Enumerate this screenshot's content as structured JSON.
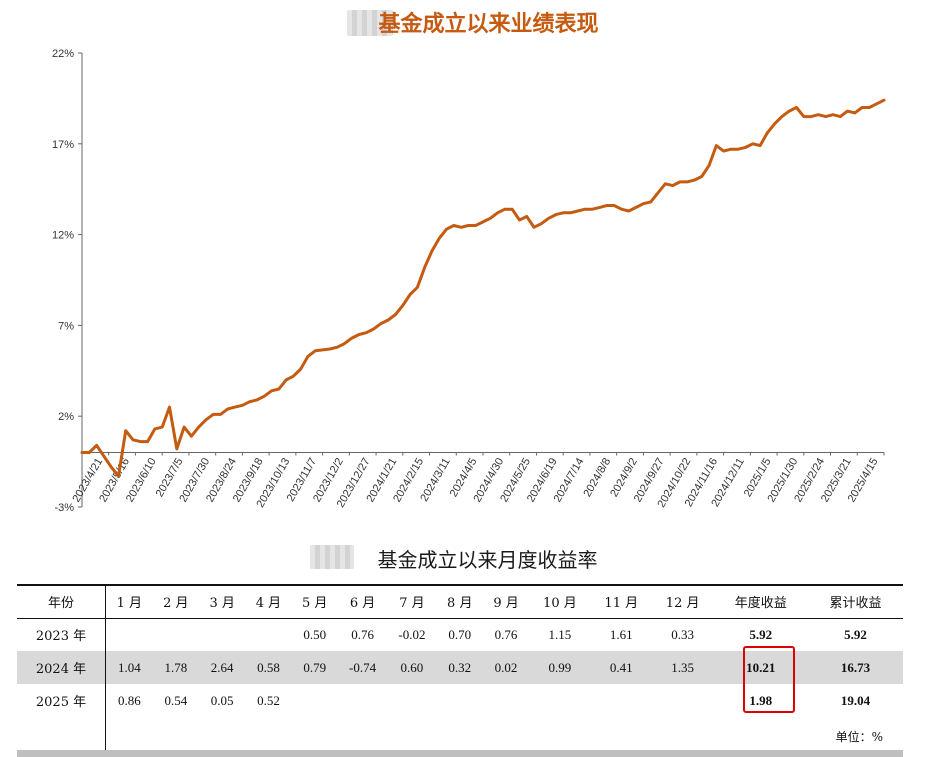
{
  "chart_title": "基金成立以来业绩表现",
  "table_title": "基金成立以来月度收益率",
  "chart_data": {
    "type": "line",
    "title": "基金成立以来业绩表现",
    "xlabel": "",
    "ylabel": "",
    "ylim": [
      -3,
      22
    ],
    "yticks": [
      "-3%",
      "2%",
      "7%",
      "12%",
      "17%",
      "22%"
    ],
    "ytick_values": [
      -3,
      2,
      7,
      12,
      17,
      22
    ],
    "xtick_labels": [
      "2023/4/21",
      "2023/5/16",
      "2023/6/10",
      "2023/7/5",
      "2023/7/30",
      "2023/8/24",
      "2023/9/18",
      "2023/10/13",
      "2023/11/7",
      "2023/12/2",
      "2023/12/27",
      "2024/1/21",
      "2024/2/15",
      "2024/3/11",
      "2024/4/5",
      "2024/4/30",
      "2024/5/25",
      "2024/6/19",
      "2024/7/14",
      "2024/8/8",
      "2024/9/2",
      "2024/9/27",
      "2024/10/22",
      "2024/11/16",
      "2024/12/11",
      "2025/1/5",
      "2025/1/30",
      "2025/2/24",
      "2025/3/21",
      "2025/4/15"
    ],
    "grid": false,
    "color": "#c55a11",
    "series": [
      {
        "values": [
          0.0,
          0.0,
          0.4,
          -0.2,
          -0.8,
          -1.3,
          1.2,
          0.7,
          0.6,
          0.6,
          1.3,
          1.4,
          2.5,
          0.2,
          1.4,
          0.9,
          1.4,
          1.8,
          2.1,
          2.1,
          2.4,
          2.5,
          2.6,
          2.8,
          2.9,
          3.1,
          3.4,
          3.5,
          4.0,
          4.2,
          4.6,
          5.3,
          5.6,
          5.65,
          5.7,
          5.8,
          6.0,
          6.3,
          6.5,
          6.6,
          6.8,
          7.1,
          7.3,
          7.6,
          8.1,
          8.7,
          9.1,
          10.2,
          11.1,
          11.8,
          12.3,
          12.5,
          12.4,
          12.5,
          12.5,
          12.7,
          12.9,
          13.2,
          13.4,
          13.4,
          12.8,
          13.0,
          12.4,
          12.6,
          12.9,
          13.1,
          13.2,
          13.2,
          13.3,
          13.4,
          13.4,
          13.5,
          13.6,
          13.6,
          13.4,
          13.3,
          13.5,
          13.7,
          13.8,
          14.3,
          14.8,
          14.7,
          14.9,
          14.9,
          15.0,
          15.2,
          15.8,
          16.9,
          16.6,
          16.7,
          16.7,
          16.8,
          17.0,
          16.9,
          17.6,
          18.1,
          18.5,
          18.8,
          19.0,
          18.5,
          18.5,
          18.6,
          18.5,
          18.6,
          18.5,
          18.8,
          18.7,
          19.0,
          19.0,
          19.2,
          19.4
        ]
      }
    ]
  },
  "table": {
    "headers": [
      "年份",
      "1 月",
      "2 月",
      "3 月",
      "4 月",
      "5 月",
      "6 月",
      "7 月",
      "8 月",
      "9 月",
      "10 月",
      "11 月",
      "12 月",
      "年度收益",
      "累计收益"
    ],
    "rows": [
      {
        "year": "2023 年",
        "values": [
          "",
          "",
          "",
          "",
          "0.50",
          "0.76",
          "-0.02",
          "0.70",
          "0.76",
          "1.15",
          "1.61",
          "0.33"
        ],
        "annual": "5.92",
        "cumulative": "5.92"
      },
      {
        "year": "2024 年",
        "values": [
          "1.04",
          "1.78",
          "2.64",
          "0.58",
          "0.79",
          "-0.74",
          "0.60",
          "0.32",
          "0.02",
          "0.99",
          "0.41",
          "1.35"
        ],
        "annual": "10.21",
        "cumulative": "16.73"
      },
      {
        "year": "2025 年",
        "values": [
          "0.86",
          "0.54",
          "0.05",
          "0.52",
          "",
          "",
          "",
          "",
          "",
          "",
          "",
          ""
        ],
        "annual": "1.98",
        "cumulative": "19.04"
      }
    ],
    "unit": "单位：%"
  },
  "colors": {
    "line": "#c55a11",
    "title": "#c55a11",
    "highlight": "#e00000",
    "shade": "#d9d9d9"
  }
}
